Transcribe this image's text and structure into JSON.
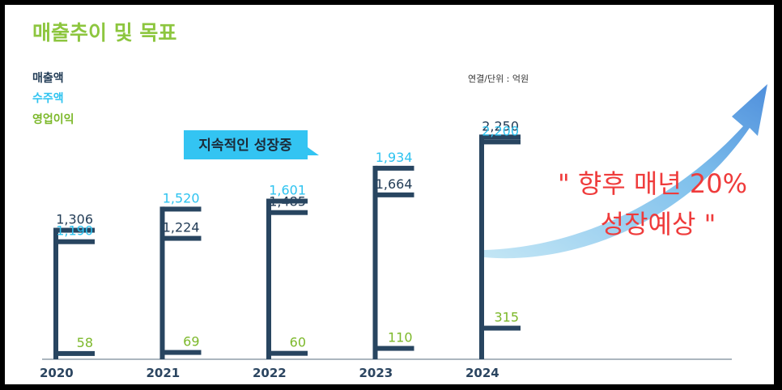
{
  "title": "매출추이 및 목표",
  "unit_note": "연결/단위 : 억원",
  "badge": "지속적인 성장중",
  "callout": {
    "line1": "\" 향후 매년 20%",
    "line2": "성장예상 \""
  },
  "colors": {
    "revenue": "#233d57",
    "orders": "#2ec3f0",
    "profit": "#7cb82a",
    "bar": "#284560",
    "arrow": "#5aa5e6",
    "callout": "#ef3b3b"
  },
  "chart_data": {
    "type": "bar",
    "categories": [
      "2020",
      "2021",
      "2022",
      "2023",
      "2024"
    ],
    "series": [
      {
        "name": "매출액",
        "values": [
          1306,
          1224,
          1485,
          1664,
          2250
        ]
      },
      {
        "name": "수주액",
        "values": [
          1190,
          1520,
          1601,
          1934,
          2200
        ]
      },
      {
        "name": "영업이익",
        "values": [
          58,
          69,
          60,
          110,
          315
        ]
      }
    ],
    "value_labels": {
      "매출액": [
        "1,306",
        "1,224",
        "1,485",
        "1,664",
        "2,250"
      ],
      "수주액": [
        "1,190",
        "1,520",
        "1,601",
        "1,934",
        "2,200"
      ],
      "영업이익": [
        "58",
        "69",
        "60",
        "110",
        "315"
      ]
    },
    "ylim": [
      0,
      2400
    ],
    "legend_position": "top-left"
  }
}
